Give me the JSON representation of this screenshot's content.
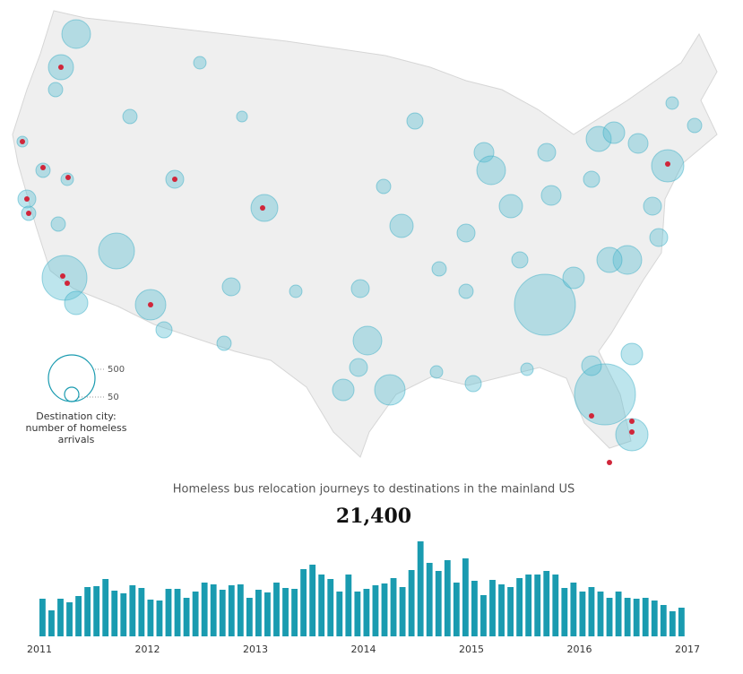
{
  "map": {
    "legend": {
      "title": "Destination city: number of homeless arrivals",
      "sizes": [
        500,
        50
      ]
    },
    "arrivals": [
      189,
      145,
      47,
      47,
      27,
      47,
      36,
      74,
      47,
      47,
      296,
      462,
      125,
      214,
      60,
      74,
      166,
      74,
      36,
      27,
      189,
      214,
      107,
      74,
      74,
      125,
      60,
      47,
      90,
      189,
      125,
      74,
      47,
      90,
      855,
      107,
      60,
      145,
      107,
      90,
      240,
      74,
      189,
      145,
      107,
      855,
      240,
      90,
      60,
      74,
      47,
      36,
      36,
      47,
      47,
      74,
      60,
      36,
      36
    ]
  },
  "chart_data": {
    "type": "bar",
    "title": "Homeless bus relocation journeys to destinations in the mainland US",
    "total": "21,400",
    "color": "#1a9bb0",
    "xlim": [
      2011,
      2017
    ],
    "xticks": [
      2011,
      2012,
      2013,
      2014,
      2015,
      2016,
      2017
    ],
    "values": [
      210,
      145,
      210,
      190,
      225,
      275,
      280,
      320,
      255,
      240,
      285,
      270,
      205,
      200,
      265,
      265,
      215,
      250,
      300,
      290,
      260,
      285,
      290,
      215,
      260,
      245,
      300,
      270,
      265,
      375,
      400,
      345,
      320,
      250,
      345,
      250,
      265,
      285,
      295,
      325,
      275,
      370,
      530,
      410,
      365,
      425,
      300,
      435,
      310,
      230,
      315,
      290,
      275,
      325,
      345,
      345,
      365,
      345,
      270,
      300,
      250,
      275,
      250,
      215,
      250,
      215,
      210,
      215,
      200,
      175,
      140,
      160
    ]
  }
}
